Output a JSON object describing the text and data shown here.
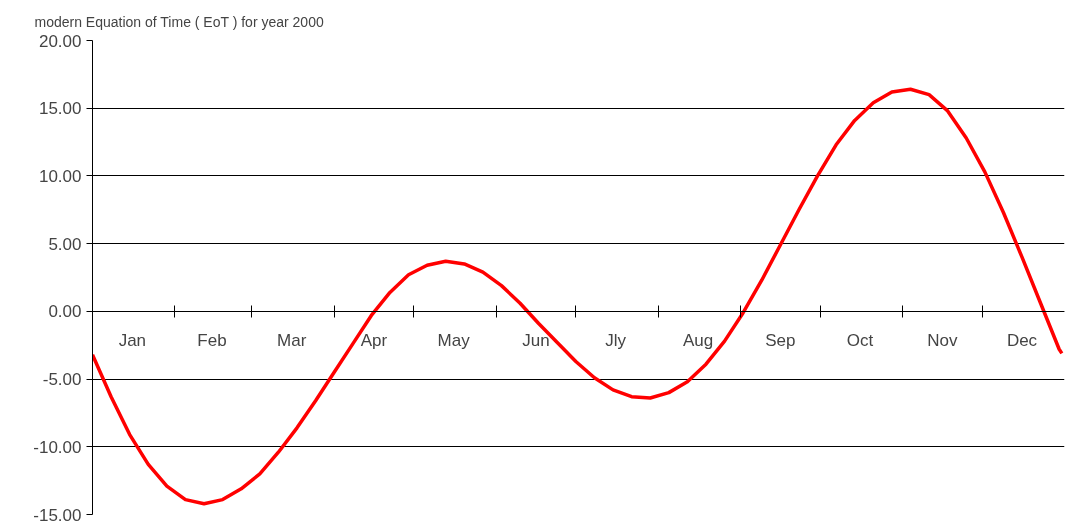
{
  "chart_data": {
    "type": "line",
    "title": "modern Equation of Time ( EoT ) for year 2000",
    "x": [
      "2000-01-01",
      "2000-01-08",
      "2000-01-15",
      "2000-01-22",
      "2000-01-29",
      "2000-02-05",
      "2000-02-12",
      "2000-02-19",
      "2000-02-26",
      "2000-03-04",
      "2000-03-11",
      "2000-03-18",
      "2000-03-25",
      "2000-04-01",
      "2000-04-08",
      "2000-04-15",
      "2000-04-22",
      "2000-04-29",
      "2000-05-06",
      "2000-05-13",
      "2000-05-20",
      "2000-05-27",
      "2000-06-03",
      "2000-06-10",
      "2000-06-17",
      "2000-06-24",
      "2000-07-01",
      "2000-07-08",
      "2000-07-15",
      "2000-07-22",
      "2000-07-29",
      "2000-08-05",
      "2000-08-12",
      "2000-08-19",
      "2000-08-26",
      "2000-09-02",
      "2000-09-09",
      "2000-09-16",
      "2000-09-23",
      "2000-09-30",
      "2000-10-07",
      "2000-10-14",
      "2000-10-21",
      "2000-10-28",
      "2000-11-04",
      "2000-11-11",
      "2000-11-18",
      "2000-11-25",
      "2000-12-02",
      "2000-12-09",
      "2000-12-16",
      "2000-12-23",
      "2000-12-30",
      "2000-12-31"
    ],
    "series": [
      {
        "color": "#ff0000",
        "values": [
          -3.2,
          -6.3,
          -9.1,
          -11.3,
          -12.9,
          -13.9,
          -14.2,
          -13.9,
          -13.1,
          -12.0,
          -10.4,
          -8.6,
          -6.6,
          -4.5,
          -2.4,
          -0.3,
          1.4,
          2.7,
          3.4,
          3.7,
          3.5,
          2.9,
          1.9,
          0.6,
          -0.9,
          -2.3,
          -3.7,
          -4.9,
          -5.8,
          -6.3,
          -6.4,
          -6.0,
          -5.2,
          -3.9,
          -2.2,
          -0.1,
          2.3,
          4.9,
          7.5,
          10.0,
          12.3,
          14.1,
          15.4,
          16.2,
          16.4,
          16.0,
          14.8,
          12.8,
          10.3,
          7.3,
          4.0,
          0.6,
          -2.8,
          -3.1
        ]
      }
    ],
    "xlim": [
      "2000-01-01",
      "2001-01-01"
    ],
    "xticks": [
      {
        "value": "2000-01-16",
        "label": "Jan"
      },
      {
        "value": "2000-02-01",
        "label": null
      },
      {
        "value": "2000-02-15",
        "label": "Feb"
      },
      {
        "value": "2000-03-01",
        "label": null
      },
      {
        "value": "2000-03-16",
        "label": "Mar"
      },
      {
        "value": "2000-04-01",
        "label": null
      },
      {
        "value": "2000-04-16",
        "label": "Apr"
      },
      {
        "value": "2000-05-01",
        "label": null
      },
      {
        "value": "2000-05-16",
        "label": "May"
      },
      {
        "value": "2000-06-01",
        "label": null
      },
      {
        "value": "2000-06-16",
        "label": "Jun"
      },
      {
        "value": "2000-07-01",
        "label": null
      },
      {
        "value": "2000-07-16",
        "label": "Jly"
      },
      {
        "value": "2000-08-01",
        "label": null
      },
      {
        "value": "2000-08-16",
        "label": "Aug"
      },
      {
        "value": "2000-09-01",
        "label": null
      },
      {
        "value": "2000-09-16",
        "label": "Sep"
      },
      {
        "value": "2000-10-01",
        "label": null
      },
      {
        "value": "2000-10-16",
        "label": "Oct"
      },
      {
        "value": "2000-11-01",
        "label": null
      },
      {
        "value": "2000-11-16",
        "label": "Nov"
      },
      {
        "value": "2000-12-01",
        "label": null
      },
      {
        "value": "2000-12-16",
        "label": "Dec"
      }
    ],
    "ylim": [
      -15,
      20
    ],
    "yticks": [
      {
        "value": -15,
        "label": "-15.00"
      },
      {
        "value": -10,
        "label": "-10.00"
      },
      {
        "value": -5,
        "label": "-5.00"
      },
      {
        "value": 0,
        "label": "0.00"
      },
      {
        "value": 5,
        "label": "5.00"
      },
      {
        "value": 10,
        "label": "10.00"
      },
      {
        "value": 15,
        "label": "15.00"
      },
      {
        "value": 20,
        "label": "20.00"
      }
    ],
    "grid": "y",
    "marker": "none",
    "line_style": "solid"
  }
}
